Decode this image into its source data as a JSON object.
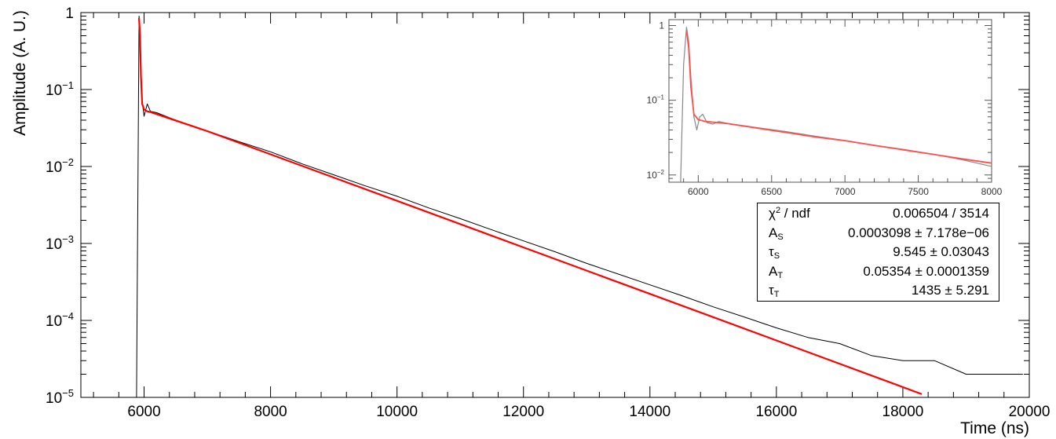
{
  "chart_data": [
    {
      "type": "line",
      "title": "",
      "xlabel": "Time (ns)",
      "ylabel": "Amplitude (A. U.)",
      "xlim": [
        5000,
        20000
      ],
      "ylim": [
        1e-05,
        1
      ],
      "yscale": "log",
      "grid": false,
      "x_ticks": [
        6000,
        8000,
        10000,
        12000,
        14000,
        16000,
        18000,
        20000
      ],
      "x_tick_labels": [
        "6000",
        "8000",
        "10000",
        "12000",
        "14000",
        "16000",
        "18000",
        "20000"
      ],
      "y_ticks": [
        1e-05,
        0.0001,
        0.001,
        0.01,
        0.1,
        1
      ],
      "y_tick_labels": [
        {
          "base": "10",
          "exp": "−5"
        },
        {
          "base": "10",
          "exp": "−4"
        },
        {
          "base": "10",
          "exp": "−3"
        },
        {
          "base": "10",
          "exp": "−2"
        },
        {
          "base": "10",
          "exp": "−1"
        },
        {
          "base": "1",
          "exp": ""
        }
      ],
      "series": [
        {
          "color": "#000000",
          "x": [
            5880,
            5900,
            5920,
            5935,
            5950,
            5970,
            6000,
            6050,
            6100,
            6200,
            6400,
            6700,
            7000,
            7500,
            8000,
            8500,
            9000,
            9500,
            10000,
            10500,
            11000,
            11500,
            12000,
            12500,
            13000,
            13500,
            14000,
            14500,
            15000,
            15500,
            16000,
            16500,
            17000,
            17500,
            18000,
            18500,
            19000,
            19500,
            19900
          ],
          "y": [
            1e-05,
            0.003,
            0.9,
            0.6,
            0.2,
            0.07,
            0.045,
            0.065,
            0.052,
            0.05,
            0.043,
            0.035,
            0.029,
            0.021,
            0.0155,
            0.0108,
            0.0078,
            0.0056,
            0.0041,
            0.0029,
            0.0021,
            0.0015,
            0.00108,
            0.00078,
            0.00055,
            0.0004,
            0.00029,
            0.00021,
            0.00015,
            0.00011,
            8e-05,
            6e-05,
            5e-05,
            3.5e-05,
            3e-05,
            3e-05,
            2e-05,
            2e-05,
            2e-05
          ]
        },
        {
          "color": "#ff0000",
          "x": [
            5920,
            5935,
            5950,
            5970,
            6000,
            6050,
            6100,
            7000,
            8000,
            10000,
            12000,
            14000,
            16000,
            18000,
            18300
          ],
          "y": [
            0.85,
            0.5,
            0.15,
            0.065,
            0.055,
            0.052,
            0.051,
            0.0288,
            0.0144,
            0.00358,
            0.000889,
            0.000221,
            5.49e-05,
            1.36e-05,
            1.1e-05
          ]
        }
      ]
    },
    {
      "type": "line",
      "title": "",
      "xlabel": "",
      "ylabel": "",
      "xlim": [
        5800,
        8000
      ],
      "ylim": [
        0.008,
        1.2
      ],
      "yscale": "log",
      "grid": false,
      "x_ticks": [
        6000,
        6500,
        7000,
        7500,
        8000
      ],
      "x_tick_labels": [
        "6000",
        "6500",
        "7000",
        "7500",
        "8000"
      ],
      "y_ticks": [
        0.01,
        0.1,
        1
      ],
      "y_tick_labels": [
        {
          "base": "10",
          "exp": "−2"
        },
        {
          "base": "10",
          "exp": "−1"
        },
        {
          "base": "1",
          "exp": ""
        }
      ],
      "series": [
        {
          "color": "#888888",
          "x": [
            5880,
            5900,
            5920,
            5935,
            5950,
            5970,
            5990,
            6010,
            6030,
            6060,
            6100,
            6140,
            6200,
            6400,
            6600,
            6800,
            7000,
            7200,
            7400,
            7600,
            7800,
            8000
          ],
          "y": [
            0.008,
            0.3,
            0.95,
            0.6,
            0.2,
            0.06,
            0.04,
            0.06,
            0.065,
            0.05,
            0.048,
            0.052,
            0.049,
            0.043,
            0.038,
            0.033,
            0.029,
            0.025,
            0.022,
            0.019,
            0.016,
            0.013
          ]
        },
        {
          "color": "#ff5050",
          "x": [
            5920,
            5935,
            5950,
            5970,
            6000,
            6050,
            6100,
            6200,
            6400,
            6600,
            6800,
            7000,
            7200,
            7400,
            7600,
            7800,
            8000
          ],
          "y": [
            0.85,
            0.5,
            0.15,
            0.065,
            0.055,
            0.052,
            0.051,
            0.0487,
            0.0424,
            0.037,
            0.0322,
            0.0288,
            0.0249,
            0.0217,
            0.0189,
            0.0164,
            0.0144
          ]
        }
      ]
    }
  ],
  "stats": [
    {
      "name": "χ",
      "sup": "2",
      "sub": "",
      "suffix": " / ndf",
      "value": "0.006504 / 3514"
    },
    {
      "name": "A",
      "sup": "",
      "sub": "S",
      "suffix": "",
      "value": "0.0003098 ± 7.178e−06"
    },
    {
      "name": "τ",
      "sup": "",
      "sub": "S",
      "suffix": "",
      "value": "9.545 ± 0.03043"
    },
    {
      "name": "A",
      "sup": "",
      "sub": "T",
      "suffix": "",
      "value": "0.05354 ± 0.0001359"
    },
    {
      "name": "τ",
      "sup": "",
      "sub": "T",
      "suffix": "",
      "value": "1435 ± 5.291"
    }
  ]
}
